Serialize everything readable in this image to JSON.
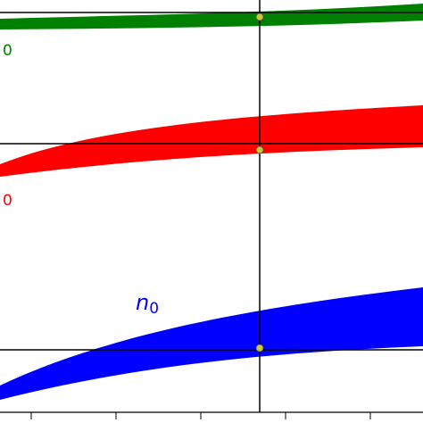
{
  "chart_data": {
    "type": "band",
    "annotations": [
      {
        "text": "0",
        "color": "#008000"
      },
      {
        "text": "0",
        "color": "#ff0000"
      },
      {
        "text": "n",
        "subscript": "0",
        "color": "#0000ff"
      }
    ]
  }
}
